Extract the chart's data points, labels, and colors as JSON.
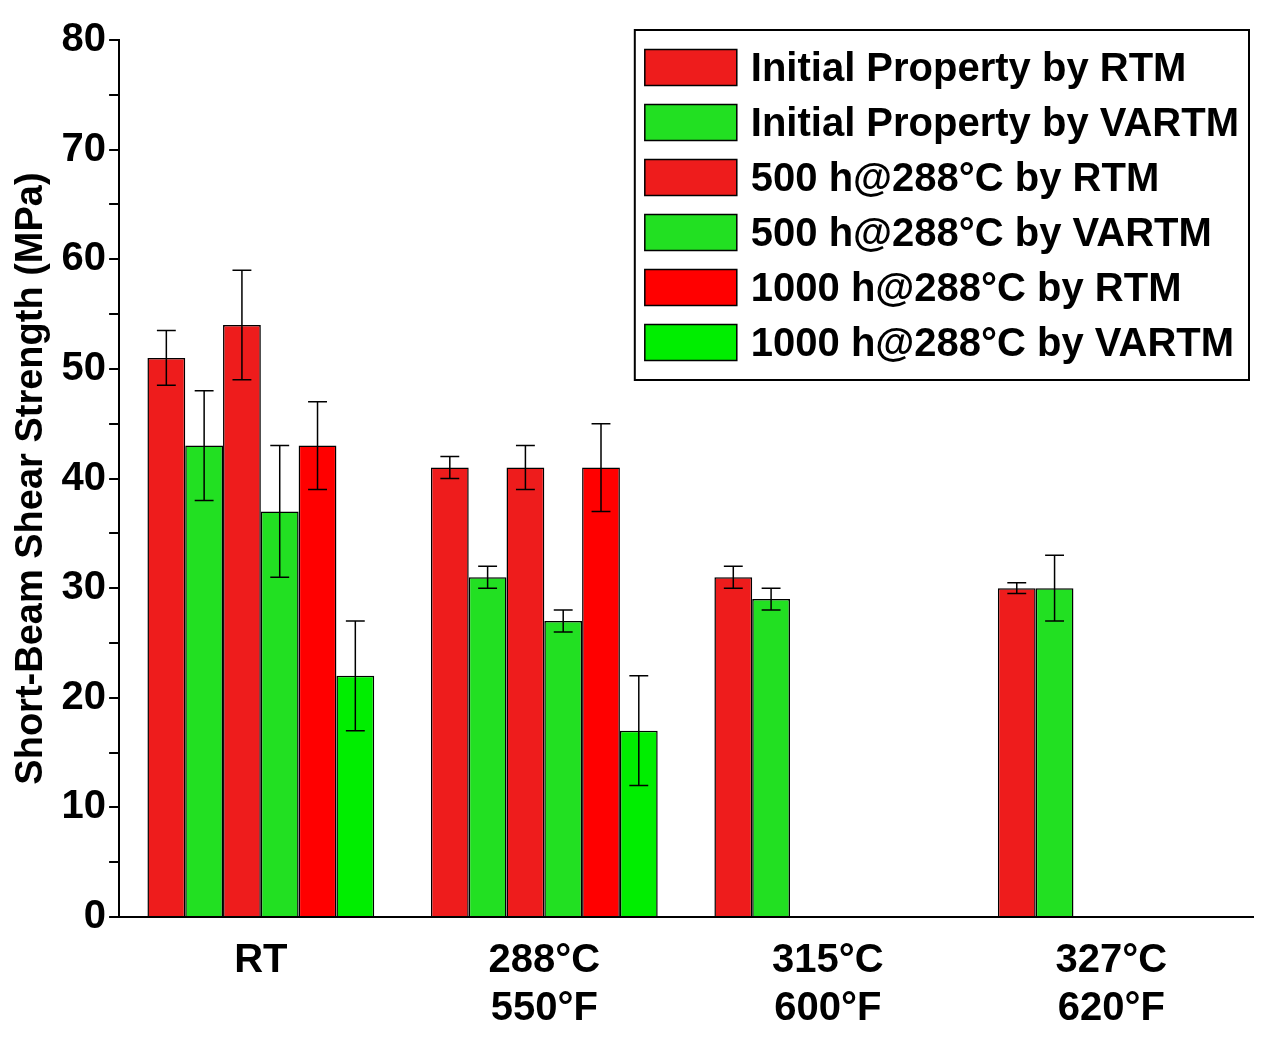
{
  "chart_data": {
    "type": "bar",
    "ylabel": "Short-Beam Shear Strength (MPa)",
    "categories": [
      "RT",
      "288°C\n550°F",
      "315°C\n600°F",
      "327°C\n620°F"
    ],
    "series": [
      {
        "name": "Initial Property by RTM",
        "color": "#ee1c1c",
        "values": [
          51,
          41,
          31,
          30
        ],
        "errors": [
          2.5,
          1,
          1,
          0.5
        ]
      },
      {
        "name": "Initial Property by VARTM",
        "color": "#22e022",
        "values": [
          43,
          31,
          29,
          30
        ],
        "errors": [
          5,
          1,
          1,
          3
        ]
      },
      {
        "name": "500 h@288°C by RTM",
        "color": "#ee1c1c",
        "values": [
          54,
          41,
          null,
          null
        ],
        "errors": [
          5,
          2,
          null,
          null
        ]
      },
      {
        "name": "500 h@288°C by VARTM",
        "color": "#22e022",
        "values": [
          37,
          27,
          null,
          null
        ],
        "errors": [
          6,
          1,
          null,
          null
        ]
      },
      {
        "name": "1000 h@288°C by RTM",
        "color": "#ff0000",
        "values": [
          43,
          41,
          null,
          null
        ],
        "errors": [
          4,
          4,
          null,
          null
        ]
      },
      {
        "name": "1000 h@288°C by VARTM",
        "color": "#00ee00",
        "values": [
          22,
          17,
          null,
          null
        ],
        "errors": [
          5,
          5,
          null,
          null
        ]
      }
    ],
    "ylim": [
      0,
      80
    ],
    "yticks": [
      0,
      {
        "value": 5,
        "label": null
      },
      10,
      {
        "value": 15,
        "label": null
      },
      20,
      {
        "value": 25,
        "label": null
      },
      30,
      {
        "value": 35,
        "label": null
      },
      40,
      {
        "value": 45,
        "label": null
      },
      50,
      {
        "value": 55,
        "label": null
      },
      60,
      {
        "value": 65,
        "label": null
      },
      70,
      {
        "value": 75,
        "label": null
      },
      80
    ],
    "grid": false,
    "legend": "top right"
  }
}
